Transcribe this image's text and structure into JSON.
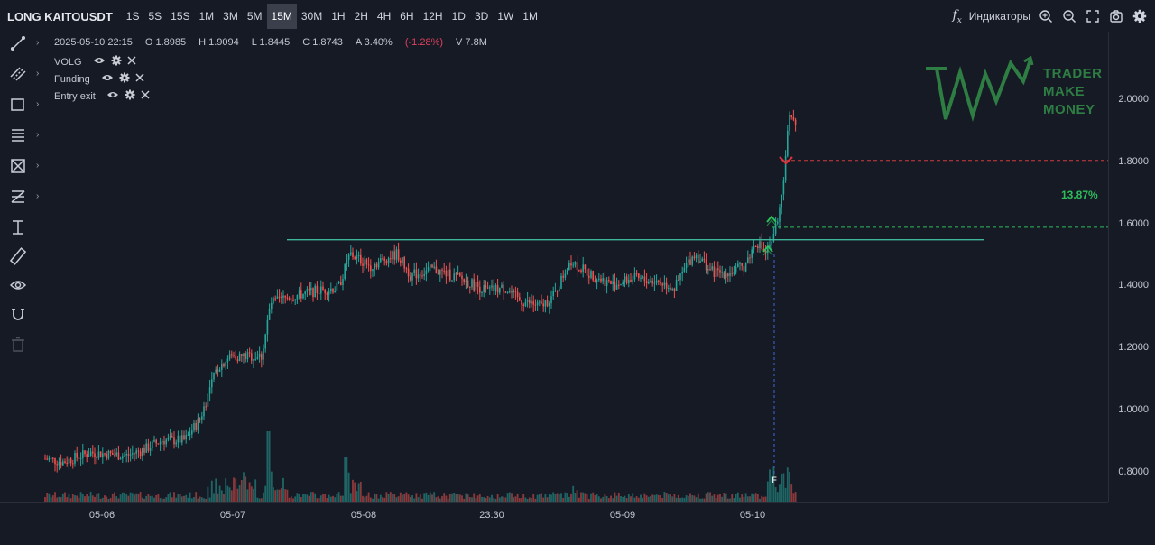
{
  "toolbar": {
    "symbol": "LONG KAITOUSDT",
    "timeframes": [
      "1S",
      "5S",
      "15S",
      "1M",
      "3M",
      "5M",
      "15M",
      "30M",
      "1H",
      "2H",
      "4H",
      "6H",
      "12H",
      "1D",
      "3D",
      "1W",
      "1M"
    ],
    "active_timeframe": "15M",
    "indicators_label": "Индикаторы"
  },
  "info": {
    "datetime": "2025-05-10 22:15",
    "open": "O 1.8985",
    "high": "H 1.9094",
    "low": "L 1.8445",
    "close": "C 1.8743",
    "amplitude": "A 3.40%",
    "change": "(-1.28%)",
    "volume": "V 7.8M"
  },
  "legend": [
    {
      "label": "VOLG"
    },
    {
      "label": "Funding"
    },
    {
      "label": "Entry exit"
    }
  ],
  "logo": {
    "line1": "TRADER",
    "line2": "MAKE",
    "line3": "MONEY"
  },
  "price_axis": [
    "2.0000",
    "1.8000",
    "1.6000",
    "1.4000",
    "1.2000",
    "1.0000",
    "0.8000"
  ],
  "time_axis": [
    "05-06",
    "05-07",
    "05-08",
    "23:30",
    "05-09",
    "05-10"
  ],
  "trade": {
    "profit_label": "13.87%",
    "entry_price": 1.565,
    "exit_price": 1.78,
    "resistance": 1.525,
    "marker": "F"
  },
  "colors": {
    "up": "#26a69a",
    "down": "#ef5350",
    "entry_line": "#2dbd5a",
    "exit_line": "#d13b3b",
    "resistance": "#3fb59a",
    "background": "#161a25"
  },
  "tools": [
    "trend-line-icon",
    "parallel-channel-icon",
    "rectangle-icon",
    "fib-icon",
    "pattern-icon",
    "projection-icon",
    "text-measure-icon",
    "ruler-icon",
    "eye-icon",
    "magnet-icon",
    "trash-icon"
  ]
}
